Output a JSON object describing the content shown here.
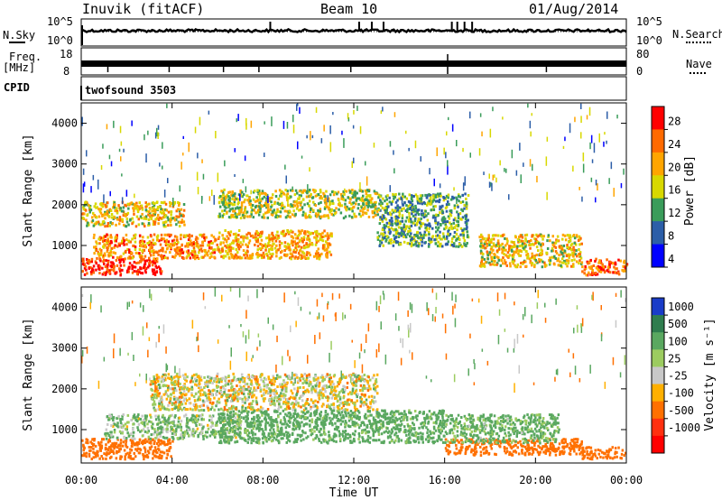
{
  "header": {
    "radar": "Inuvik (fitACF)",
    "beam": "Beam 10",
    "date": "01/Aug/2014"
  },
  "strips": {
    "nsky_label": "N.Sky",
    "nsky_ticks": [
      "10^5",
      "10^0"
    ],
    "nsearch_label": "N.Search",
    "nsearch_ticks": [
      "10^5",
      "10^0"
    ],
    "freq_label": "Freq.",
    "freq_unit": "[MHz]",
    "freq_ticks": [
      "18",
      "8"
    ],
    "nave_label": "Nave",
    "nave_ticks": [
      "80",
      "0"
    ],
    "cpid_label": "CPID",
    "cpid_value": "twofsound 3503"
  },
  "chart_data": [
    {
      "type": "heatmap",
      "panel": "power",
      "ylabel": "Slant Range [km]",
      "yticks": [
        "4000",
        "3000",
        "2000",
        "1000"
      ],
      "ylim": [
        180,
        4500
      ],
      "xlim": [
        0,
        24
      ],
      "colorbar_label": "Power [dB]",
      "colorbar_ticks": [
        "28",
        "24",
        "20",
        "16",
        "12",
        "8",
        "4"
      ],
      "colorbar_colors": [
        "#ff0000",
        "#ff6a00",
        "#ffa500",
        "#d8d800",
        "#3a9c5a",
        "#2c5ea8",
        "#0000ff"
      ],
      "bands": [
        {
          "range_km": [
            300,
            700
          ],
          "time_h": [
            0,
            3.5
          ],
          "power_db": 28
        },
        {
          "range_km": [
            700,
            1300
          ],
          "time_h": [
            0.5,
            6
          ],
          "power_db": 22
        },
        {
          "range_km": [
            700,
            1400
          ],
          "time_h": [
            6,
            11
          ],
          "power_db": 20
        },
        {
          "range_km": [
            1500,
            2100
          ],
          "time_h": [
            0,
            4.5
          ],
          "power_db": 18
        },
        {
          "range_km": [
            1700,
            2400
          ],
          "time_h": [
            6,
            13
          ],
          "power_db": 16
        },
        {
          "range_km": [
            1000,
            2300
          ],
          "time_h": [
            13,
            17
          ],
          "power_db": 12
        },
        {
          "range_km": [
            500,
            1300
          ],
          "time_h": [
            17.5,
            22
          ],
          "power_db": 18
        },
        {
          "range_km": [
            300,
            700
          ],
          "time_h": [
            22,
            24
          ],
          "power_db": 24
        }
      ]
    },
    {
      "type": "heatmap",
      "panel": "velocity",
      "ylabel": "Slant Range [km]",
      "yticks": [
        "4000",
        "3000",
        "2000",
        "1000"
      ],
      "ylim": [
        180,
        4500
      ],
      "xlim": [
        0,
        24
      ],
      "xticks": [
        "00:00",
        "04:00",
        "08:00",
        "12:00",
        "16:00",
        "20:00",
        "00:00"
      ],
      "xlabel": "Time UT",
      "colorbar_label": "Velocity [m s⁻¹]",
      "colorbar_ticks": [
        "1000",
        "500",
        "100",
        "25",
        "-25",
        "-100",
        "-500",
        "-1000"
      ],
      "colorbar_colors": [
        "#1a3cc8",
        "#2f7d4e",
        "#5aa860",
        "#9ccc60",
        "#c8c8c8",
        "#ffb000",
        "#ff7000",
        "#ff3010",
        "#ff0000"
      ],
      "bands": [
        {
          "range_km": [
            300,
            800
          ],
          "time_h": [
            0,
            4
          ],
          "velocity": -300
        },
        {
          "range_km": [
            800,
            1400
          ],
          "time_h": [
            1,
            7
          ],
          "velocity": 100
        },
        {
          "range_km": [
            1500,
            2400
          ],
          "time_h": [
            3,
            13
          ],
          "velocity": 0
        },
        {
          "range_km": [
            700,
            1500
          ],
          "time_h": [
            6,
            16
          ],
          "velocity": 200
        },
        {
          "range_km": [
            400,
            800
          ],
          "time_h": [
            16,
            22
          ],
          "velocity": -300
        },
        {
          "range_km": [
            700,
            1400
          ],
          "time_h": [
            16,
            21
          ],
          "velocity": 150
        },
        {
          "range_km": [
            300,
            600
          ],
          "time_h": [
            22,
            24
          ],
          "velocity": -300
        }
      ]
    }
  ]
}
